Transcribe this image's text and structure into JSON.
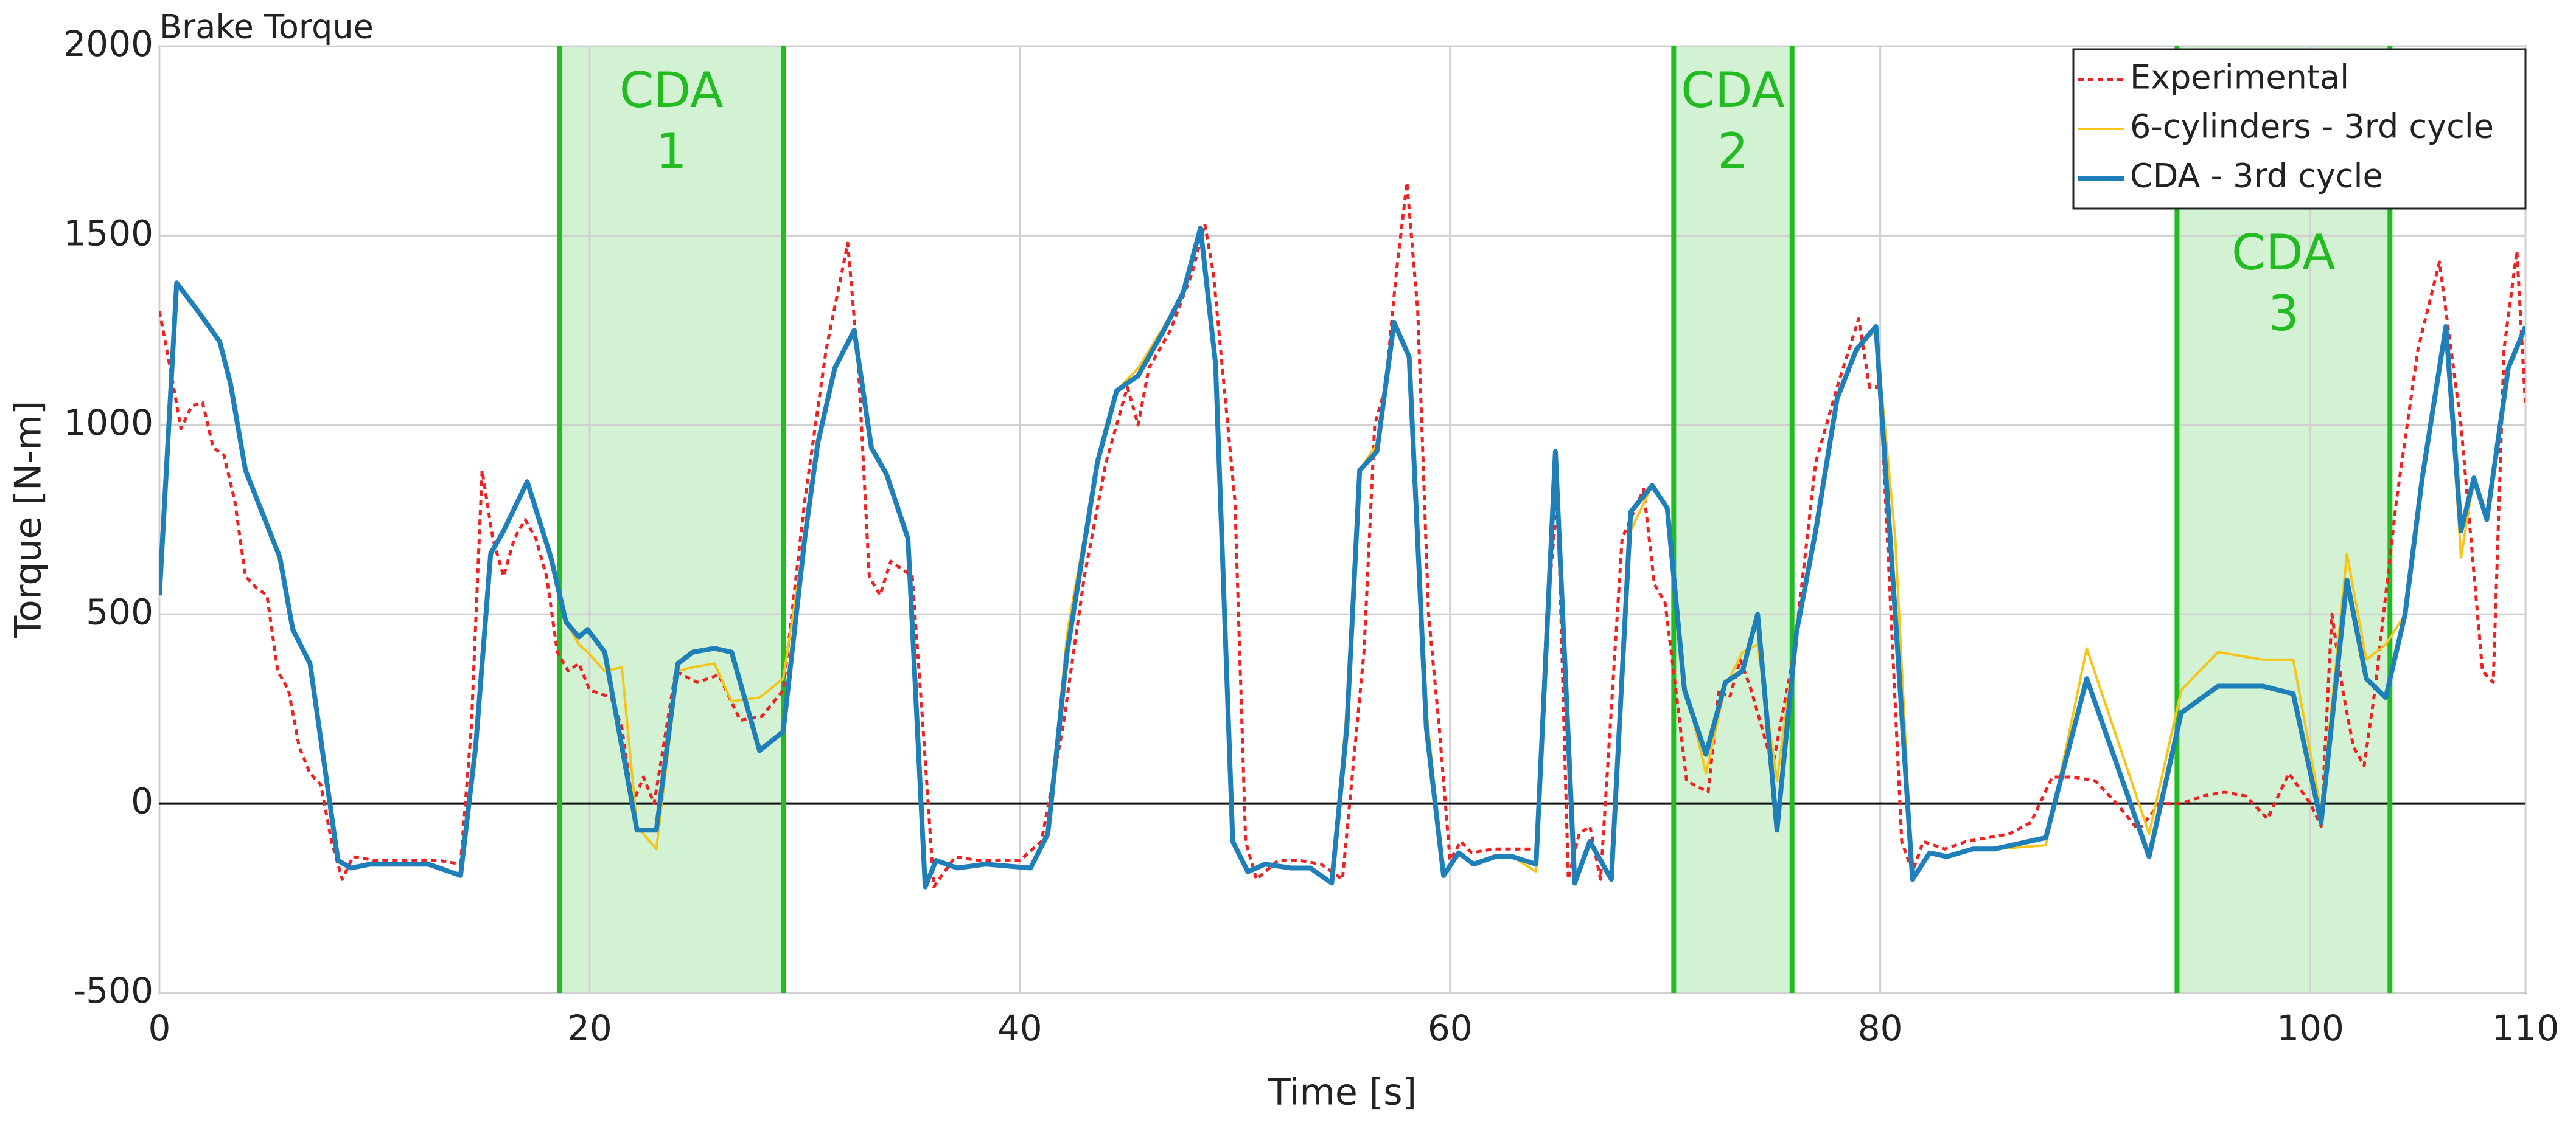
{
  "chart_data": {
    "type": "line",
    "title": "Brake Torque",
    "xlabel": "Time [s]",
    "ylabel": "Torque [N-m]",
    "xlim": [
      0,
      110
    ],
    "ylim": [
      -500,
      2000
    ],
    "xticks": [
      0,
      20,
      40,
      60,
      80,
      100,
      110
    ],
    "yticks": [
      -500,
      0,
      500,
      1000,
      1500,
      2000
    ],
    "grid": true,
    "legend": "upper right",
    "regions": [
      {
        "label": [
          "CDA",
          "1"
        ],
        "xlim": [
          18.6,
          29.0
        ],
        "color": "#22bb22"
      },
      {
        "label": [
          "CDA",
          "2"
        ],
        "xlim": [
          70.4,
          75.9
        ],
        "color": "#22bb22"
      },
      {
        "label": [
          "CDA",
          "3"
        ],
        "xlim": [
          93.8,
          103.7
        ],
        "color": "#22bb22"
      }
    ],
    "series": [
      {
        "name": "Experimental",
        "color": "#ee2222",
        "style": "dotted",
        "x": [
          0,
          0.5,
          1,
          1.5,
          2,
          2.5,
          3,
          3.5,
          4,
          4.5,
          5,
          5.5,
          6,
          6.5,
          7,
          7.5,
          8,
          8.5,
          9,
          10,
          12,
          13,
          14,
          14.5,
          15,
          15.5,
          16,
          16.5,
          17,
          17.5,
          18,
          18.5,
          19,
          19.5,
          20,
          21,
          21.5,
          22,
          22.5,
          23,
          24,
          25,
          26,
          27,
          28,
          29,
          30,
          31,
          32,
          32.5,
          33,
          33.5,
          34,
          35,
          35.5,
          36,
          37,
          38,
          40,
          41,
          42,
          43,
          44,
          45,
          45.5,
          46,
          47,
          48,
          48.6,
          49,
          50,
          50.5,
          51,
          52,
          53,
          54,
          55,
          56,
          56.5,
          57,
          57.5,
          58,
          58.5,
          59,
          59.5,
          60,
          60.5,
          61,
          62,
          63,
          64,
          64.5,
          65,
          65.5,
          66,
          66.5,
          67,
          68,
          69,
          69.5,
          70,
          70.5,
          71,
          72,
          72.5,
          73,
          73.5,
          74,
          75,
          76,
          77,
          78,
          79,
          79.5,
          80,
          81,
          81.5,
          82,
          83,
          84,
          85,
          86,
          87,
          88,
          89,
          90,
          91,
          92,
          93,
          94,
          95,
          96,
          97,
          98,
          99,
          100,
          100.5,
          101,
          101.5,
          102,
          102.5,
          103,
          104,
          105,
          106,
          107,
          108,
          108.5,
          109,
          109.6,
          110
        ],
        "values": [
          1300,
          1150,
          990,
          1050,
          1060,
          940,
          920,
          800,
          600,
          570,
          550,
          350,
          300,
          150,
          80,
          50,
          -100,
          -200,
          -140,
          -150,
          -150,
          -150,
          -160,
          200,
          880,
          700,
          600,
          700,
          750,
          700,
          600,
          400,
          350,
          370,
          300,
          280,
          200,
          0,
          70,
          0,
          350,
          320,
          340,
          220,
          230,
          300,
          800,
          1200,
          1480,
          1150,
          600,
          550,
          640,
          600,
          200,
          -220,
          -140,
          -150,
          -150,
          -100,
          200,
          600,
          900,
          1100,
          1000,
          1150,
          1250,
          1400,
          1530,
          1400,
          800,
          -100,
          -200,
          -150,
          -150,
          -160,
          -200,
          400,
          1000,
          1100,
          1400,
          1640,
          1300,
          500,
          200,
          -150,
          -100,
          -130,
          -120,
          -120,
          -120,
          500,
          810,
          -200,
          -80,
          -60,
          -200,
          700,
          830,
          580,
          530,
          300,
          60,
          30,
          300,
          280,
          380,
          300,
          100,
          400,
          900,
          1100,
          1280,
          1100,
          1100,
          -100,
          -180,
          -100,
          -120,
          -100,
          -90,
          -80,
          -50,
          70,
          70,
          60,
          0,
          -70,
          0,
          0,
          20,
          30,
          20,
          -40,
          80,
          0,
          -60,
          500,
          300,
          150,
          100,
          300,
          800,
          1200,
          1430,
          1000,
          350,
          320,
          1200,
          1460,
          1050
        ]
      },
      {
        "name": "6-cylinders - 3rd cycle",
        "color": "#f5c518",
        "style": "thin",
        "x": [
          0,
          0.8,
          1.8,
          2.8,
          3.3,
          4.0,
          5.6,
          6.2,
          7.0,
          8.3,
          8.9,
          9.8,
          12.5,
          14.0,
          14.7,
          15.4,
          16.0,
          17.1,
          18.2,
          18.9,
          19.5,
          19.9,
          20.7,
          21.5,
          22.2,
          23.1,
          24.1,
          24.8,
          25.8,
          26.6,
          27.9,
          29.0,
          30.0,
          30.6,
          31.4,
          32.3,
          33.1,
          33.8,
          34.8,
          35.6,
          36.1,
          37.1,
          38.4,
          40.5,
          41.3,
          42.2,
          43.6,
          44.5,
          45.5,
          46.7,
          47.6,
          48.4,
          49.1,
          49.9,
          50.6,
          51.4,
          52.6,
          53.5,
          54.5,
          55.2,
          55.8,
          56.6,
          57.4,
          58.1,
          58.9,
          59.7,
          60.4,
          61.1,
          62.1,
          62.9,
          64.0,
          64.9,
          65.8,
          66.5,
          67.5,
          68.4,
          69.4,
          70.1,
          70.9,
          71.9,
          72.8,
          73.6,
          74.3,
          75.2,
          76.1,
          77.0,
          78.0,
          78.9,
          79.8,
          80.7,
          81.5,
          82.3,
          83.1,
          84.3,
          85.3,
          87.7,
          89.6,
          92.5,
          94.0,
          95.7,
          97.8,
          99.2,
          100.5,
          101.7,
          102.6,
          103.5,
          104.4,
          105.2,
          106.3,
          107.0,
          107.6,
          108.2,
          109.2,
          110
        ],
        "values": [
          550,
          1375,
          1300,
          1220,
          1110,
          880,
          650,
          460,
          370,
          -150,
          -170,
          -160,
          -160,
          -190,
          150,
          660,
          720,
          850,
          650,
          480,
          420,
          400,
          350,
          360,
          -60,
          -120,
          350,
          360,
          370,
          270,
          280,
          330,
          700,
          950,
          1150,
          1250,
          940,
          870,
          700,
          -220,
          -150,
          -170,
          -160,
          -170,
          -80,
          450,
          900,
          1090,
          1150,
          1260,
          1350,
          1520,
          1160,
          -100,
          -180,
          -160,
          -170,
          -170,
          -210,
          250,
          880,
          950,
          1270,
          1180,
          250,
          -190,
          -130,
          -160,
          -140,
          -140,
          -180,
          930,
          -210,
          -100,
          -200,
          720,
          840,
          780,
          320,
          80,
          310,
          400,
          420,
          60,
          450,
          720,
          1070,
          1200,
          1250,
          700,
          -200,
          -130,
          -140,
          -120,
          -120,
          -110,
          410,
          -80,
          300,
          400,
          380,
          380,
          -20,
          660,
          380,
          420,
          500,
          860,
          1260,
          650,
          860,
          750,
          1150,
          1260
        ]
      },
      {
        "name": "CDA - 3rd cycle",
        "color": "#1f7fb8",
        "style": "thick",
        "x": [
          0,
          0.8,
          1.8,
          2.8,
          3.3,
          4.0,
          5.6,
          6.2,
          7.0,
          8.3,
          8.9,
          9.8,
          12.5,
          14.0,
          14.7,
          15.4,
          16.0,
          17.1,
          18.2,
          18.9,
          19.5,
          19.9,
          20.7,
          21.5,
          22.2,
          23.1,
          24.1,
          24.8,
          25.8,
          26.6,
          27.9,
          29.0,
          30.0,
          30.6,
          31.4,
          32.3,
          33.1,
          33.8,
          34.8,
          35.6,
          36.1,
          37.1,
          38.4,
          40.5,
          41.3,
          42.2,
          43.6,
          44.5,
          45.5,
          46.7,
          47.6,
          48.4,
          49.1,
          49.9,
          50.6,
          51.4,
          52.6,
          53.5,
          54.5,
          55.2,
          55.8,
          56.6,
          57.4,
          58.1,
          58.9,
          59.7,
          60.4,
          61.1,
          62.1,
          62.9,
          64.0,
          64.9,
          65.8,
          66.5,
          67.5,
          68.4,
          69.4,
          70.1,
          70.9,
          71.9,
          72.8,
          73.6,
          74.3,
          75.2,
          76.1,
          77.0,
          78.0,
          78.9,
          79.8,
          80.7,
          81.5,
          82.3,
          83.1,
          84.3,
          85.3,
          87.7,
          89.6,
          92.5,
          94.0,
          95.7,
          97.8,
          99.2,
          100.5,
          101.7,
          102.6,
          103.5,
          104.4,
          105.2,
          106.3,
          107.0,
          107.6,
          108.2,
          109.2,
          110
        ],
        "values": [
          550,
          1375,
          1300,
          1220,
          1110,
          880,
          650,
          460,
          370,
          -150,
          -170,
          -160,
          -160,
          -190,
          150,
          660,
          720,
          850,
          650,
          480,
          440,
          460,
          400,
          150,
          -70,
          -70,
          370,
          400,
          410,
          400,
          140,
          190,
          700,
          950,
          1150,
          1250,
          940,
          870,
          700,
          -220,
          -150,
          -170,
          -160,
          -170,
          -80,
          400,
          900,
          1090,
          1130,
          1250,
          1350,
          1520,
          1160,
          -100,
          -180,
          -160,
          -170,
          -170,
          -210,
          200,
          880,
          930,
          1270,
          1180,
          200,
          -190,
          -130,
          -160,
          -140,
          -140,
          -160,
          930,
          -210,
          -100,
          -200,
          770,
          840,
          780,
          300,
          130,
          320,
          350,
          500,
          -70,
          450,
          720,
          1070,
          1200,
          1260,
          500,
          -200,
          -130,
          -140,
          -120,
          -120,
          -90,
          330,
          -140,
          240,
          310,
          310,
          290,
          -50,
          590,
          330,
          280,
          500,
          860,
          1260,
          720,
          860,
          750,
          1150,
          1260
        ]
      }
    ]
  }
}
